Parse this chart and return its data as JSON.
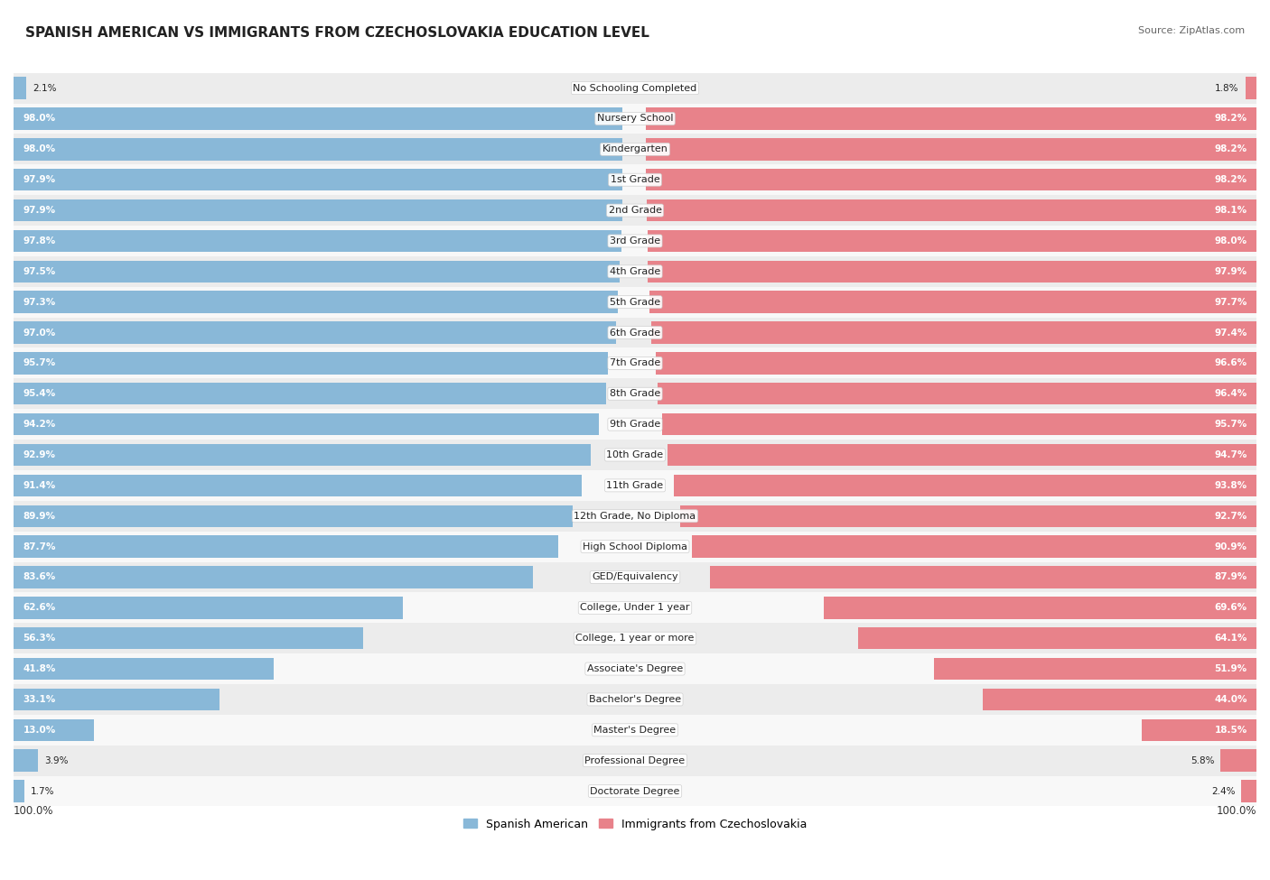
{
  "title": "SPANISH AMERICAN VS IMMIGRANTS FROM CZECHOSLOVAKIA EDUCATION LEVEL",
  "source": "Source: ZipAtlas.com",
  "categories": [
    "No Schooling Completed",
    "Nursery School",
    "Kindergarten",
    "1st Grade",
    "2nd Grade",
    "3rd Grade",
    "4th Grade",
    "5th Grade",
    "6th Grade",
    "7th Grade",
    "8th Grade",
    "9th Grade",
    "10th Grade",
    "11th Grade",
    "12th Grade, No Diploma",
    "High School Diploma",
    "GED/Equivalency",
    "College, Under 1 year",
    "College, 1 year or more",
    "Associate's Degree",
    "Bachelor's Degree",
    "Master's Degree",
    "Professional Degree",
    "Doctorate Degree"
  ],
  "spanish_american": [
    2.1,
    98.0,
    98.0,
    97.9,
    97.9,
    97.8,
    97.5,
    97.3,
    97.0,
    95.7,
    95.4,
    94.2,
    92.9,
    91.4,
    89.9,
    87.7,
    83.6,
    62.6,
    56.3,
    41.8,
    33.1,
    13.0,
    3.9,
    1.7
  ],
  "czechoslovakia": [
    1.8,
    98.2,
    98.2,
    98.2,
    98.1,
    98.0,
    97.9,
    97.7,
    97.4,
    96.6,
    96.4,
    95.7,
    94.7,
    93.8,
    92.7,
    90.9,
    87.9,
    69.6,
    64.1,
    51.9,
    44.0,
    18.5,
    5.8,
    2.4
  ],
  "blue_color": "#89b8d8",
  "pink_color": "#e8828a",
  "bg_even_color": "#ececec",
  "bg_odd_color": "#f8f8f8",
  "legend_blue": "Spanish American",
  "legend_pink": "Immigrants from Czechoslovakia",
  "total_width": 100.0,
  "label_zone_half": 8.0
}
